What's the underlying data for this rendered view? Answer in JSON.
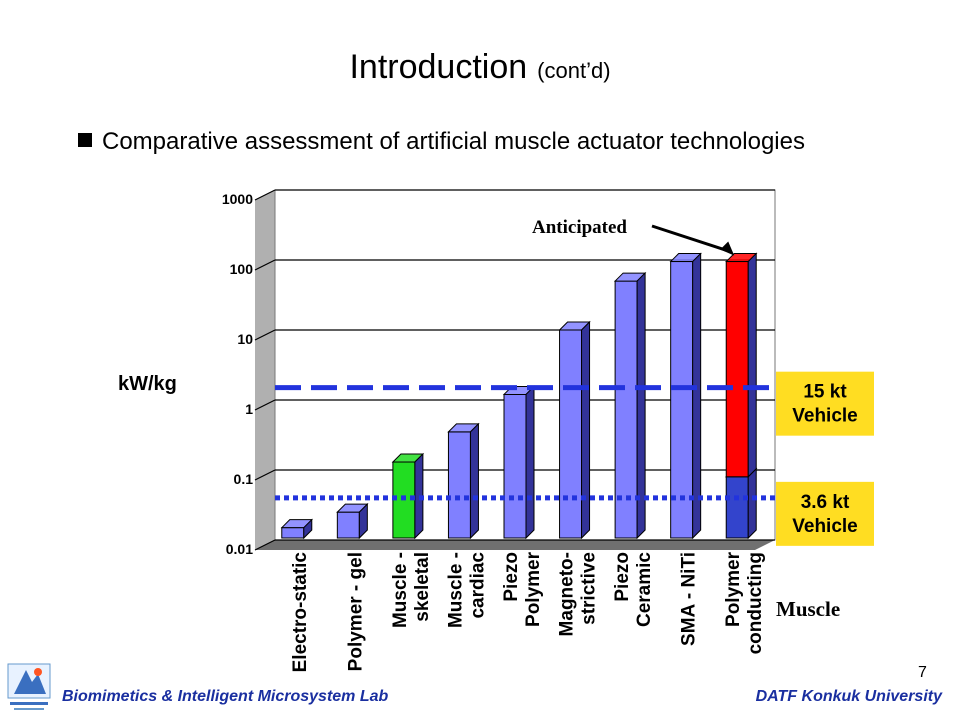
{
  "slide": {
    "title": "Introduction",
    "subtitle": "(cont’d)",
    "bullet": "Comparative assessment of artificial muscle actuator technologies",
    "page_number": "7",
    "footer_left": "Biomimetics & Intelligent Microsystem Lab",
    "footer_right": "DATF Konkuk University",
    "logo_icon": "lab-logo-icon"
  },
  "chart_data": {
    "type": "bar",
    "ylabel": "kW/kg",
    "xlabel": "Muscle",
    "yscale": "log",
    "ylim": [
      0.01,
      1000
    ],
    "yticks": [
      "1000",
      "100",
      "10",
      "1",
      "0.1",
      "0.01"
    ],
    "grid": true,
    "categories": [
      "Electro-static",
      "Polymer - gel",
      "Muscle - skeletal",
      "Muscle - cardiac",
      "Piezo Polymer",
      "Magneto- strictive",
      "Piezo Ceramic",
      "SMA - NiTi",
      "Polymer conducting"
    ],
    "category_lines": [
      [
        "Electro-static"
      ],
      [
        "Polymer - gel"
      ],
      [
        "Muscle -",
        "skeletal"
      ],
      [
        "Muscle -",
        "cardiac"
      ],
      [
        "Piezo",
        "Polymer"
      ],
      [
        "Magneto-",
        "strictive"
      ],
      [
        "Piezo",
        "Ceramic"
      ],
      [
        "SMA - NiTi"
      ],
      [
        "Polymer",
        "conducting"
      ]
    ],
    "values": [
      0.015,
      0.025,
      0.13,
      0.35,
      1.2,
      10,
      50,
      95,
      95
    ],
    "current_value_last": 0.08,
    "colors": [
      "#8080ff",
      "#8080ff",
      "#22dd22",
      "#8080ff",
      "#8080ff",
      "#8080ff",
      "#8080ff",
      "#8080ff",
      "#ff0000"
    ],
    "annotation": "Anticipated",
    "reference_lines": [
      {
        "value": 1.5,
        "label_lines": [
          "15 kt",
          "Vehicle"
        ],
        "style": "dashed"
      },
      {
        "value": 0.04,
        "label_lines": [
          "3.6 kt",
          "Vehicle"
        ],
        "style": "dotted"
      }
    ],
    "line_color": "#2233dd",
    "label_box_color": "#ffdd22"
  }
}
